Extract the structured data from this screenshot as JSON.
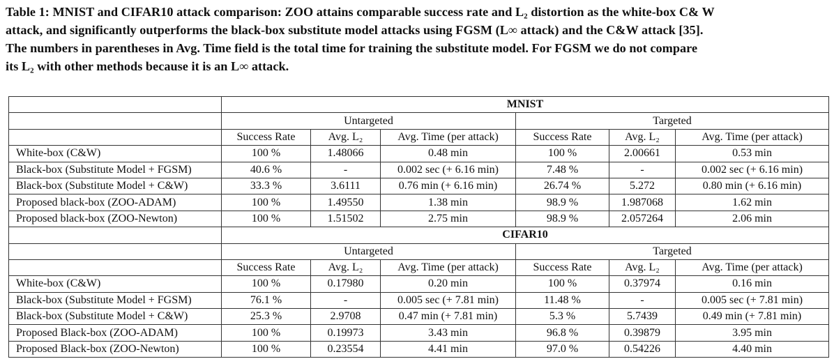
{
  "caption": {
    "line1": "Table 1: MNIST and CIFAR10 attack comparison: ZOO attains comparable success rate and L₂ distortion as the white-box C& W",
    "line2": "attack, and significantly outperforms the black-box substitute model attacks using FGSM (L∞ attack) and the C&W attack [35].",
    "line3": "The numbers in parentheses in Avg. Time field is the total time for training the substitute model. For FGSM we do not compare",
    "line4": "its L₂ with other methods because it is an L∞ attack."
  },
  "headers": {
    "untargeted": "Untargeted",
    "targeted": "Targeted",
    "success_rate": "Success Rate",
    "avg_l2": "Avg. L₂",
    "avg_time": "Avg. Time (per attack)"
  },
  "sections": [
    {
      "title": "MNIST",
      "rows": [
        {
          "method": "White-box (C&W)",
          "u_sr": "100 %",
          "u_l2": "1.48066",
          "u_time": "0.48 min",
          "t_sr": "100 %",
          "t_l2": "2.00661",
          "t_time": "0.53 min"
        },
        {
          "method": "Black-box (Substitute Model + FGSM)",
          "u_sr": "40.6 %",
          "u_l2": "-",
          "u_time": "0.002 sec (+ 6.16 min)",
          "t_sr": "7.48 %",
          "t_l2": "-",
          "t_time": "0.002 sec (+ 6.16 min)"
        },
        {
          "method": "Black-box (Substitute Model + C&W)",
          "u_sr": "33.3 %",
          "u_l2": "3.6111",
          "u_time": "0.76 min (+ 6.16 min)",
          "t_sr": "26.74 %",
          "t_l2": "5.272",
          "t_time": "0.80 min (+ 6.16 min)"
        },
        {
          "method": "Proposed black-box (ZOO-ADAM)",
          "u_sr": "100 %",
          "u_l2": "1.49550",
          "u_time": "1.38 min",
          "t_sr": "98.9 %",
          "t_l2": "1.987068",
          "t_time": "1.62 min"
        },
        {
          "method": "Proposed black-box (ZOO-Newton)",
          "u_sr": "100 %",
          "u_l2": "1.51502",
          "u_time": "2.75 min",
          "t_sr": "98.9 %",
          "t_l2": "2.057264",
          "t_time": "2.06 min"
        }
      ]
    },
    {
      "title": "CIFAR10",
      "rows": [
        {
          "method": "White-box (C&W)",
          "u_sr": "100 %",
          "u_l2": "0.17980",
          "u_time": "0.20 min",
          "t_sr": "100 %",
          "t_l2": "0.37974",
          "t_time": "0.16 min"
        },
        {
          "method": "Black-box (Substitute Model + FGSM)",
          "u_sr": "76.1 %",
          "u_l2": "-",
          "u_time": "0.005 sec (+ 7.81 min)",
          "t_sr": "11.48 %",
          "t_l2": "-",
          "t_time": "0.005 sec (+ 7.81 min)"
        },
        {
          "method": "Black-box (Substitute Model + C&W)",
          "u_sr": "25.3 %",
          "u_l2": "2.9708",
          "u_time": "0.47 min (+ 7.81 min)",
          "t_sr": "5.3 %",
          "t_l2": "5.7439",
          "t_time": "0.49 min (+ 7.81 min)"
        },
        {
          "method": "Proposed Black-box (ZOO-ADAM)",
          "u_sr": "100 %",
          "u_l2": "0.19973",
          "u_time": "3.43 min",
          "t_sr": "96.8 %",
          "t_l2": "0.39879",
          "t_time": "3.95 min"
        },
        {
          "method": "Proposed Black-box (ZOO-Newton)",
          "u_sr": "100 %",
          "u_l2": "0.23554",
          "u_time": "4.41 min",
          "t_sr": "97.0 %",
          "t_l2": "0.54226",
          "t_time": "4.40 min"
        }
      ]
    }
  ]
}
